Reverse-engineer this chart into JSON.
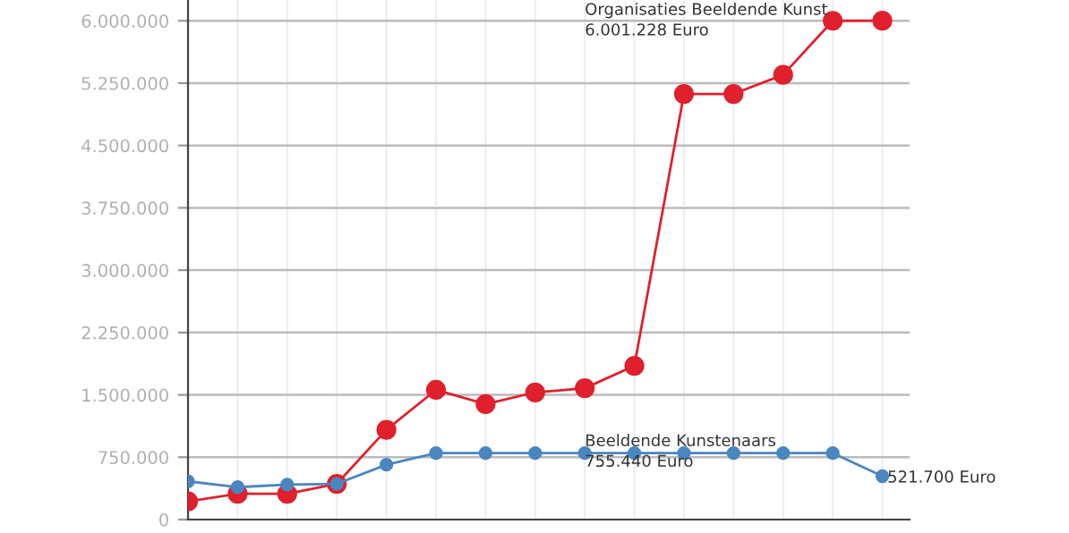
{
  "chart_data": {
    "type": "line",
    "categories": [
      null,
      null,
      null,
      null,
      null,
      null,
      null,
      null,
      null,
      null,
      null,
      null,
      null,
      null,
      null
    ],
    "series": [
      {
        "color": "#e0202c",
        "values": [
          220000,
          310000,
          310000,
          430000,
          1080000,
          1560000,
          1390000,
          1530000,
          1580000,
          1850000,
          5120000,
          5120000,
          5350000,
          6000000,
          6001228
        ]
      },
      {
        "color": "#4a86c0",
        "values": [
          460000,
          390000,
          420000,
          430000,
          660000,
          800000,
          800000,
          800000,
          800000,
          800000,
          800000,
          800000,
          800000,
          800000,
          521700
        ]
      }
    ],
    "ylim": [
      0,
      6250000
    ],
    "yticks": [
      0,
      {
        "value": 750000,
        "label": "750.000"
      },
      {
        "value": 1500000,
        "label": "1.500.000"
      },
      {
        "value": 2250000,
        "label": "2.250.000"
      },
      {
        "value": 3000000,
        "label": "3.000.000"
      },
      {
        "value": 3750000,
        "label": "3.750.000"
      },
      {
        "value": 4500000,
        "label": "4.500.000"
      },
      {
        "value": 5250000,
        "label": "5.250.000"
      },
      {
        "value": 6000000,
        "label": "6.000.000"
      }
    ],
    "grid": true,
    "marker": "circle",
    "line_style": "solid",
    "tick_labels": "y",
    "annotations": [
      "Organisaties Beeldende Kunst\n6.001.228 Euro",
      "Beeldende Kunstenaars\n755.440 Euro",
      "521.700 Euro"
    ]
  }
}
